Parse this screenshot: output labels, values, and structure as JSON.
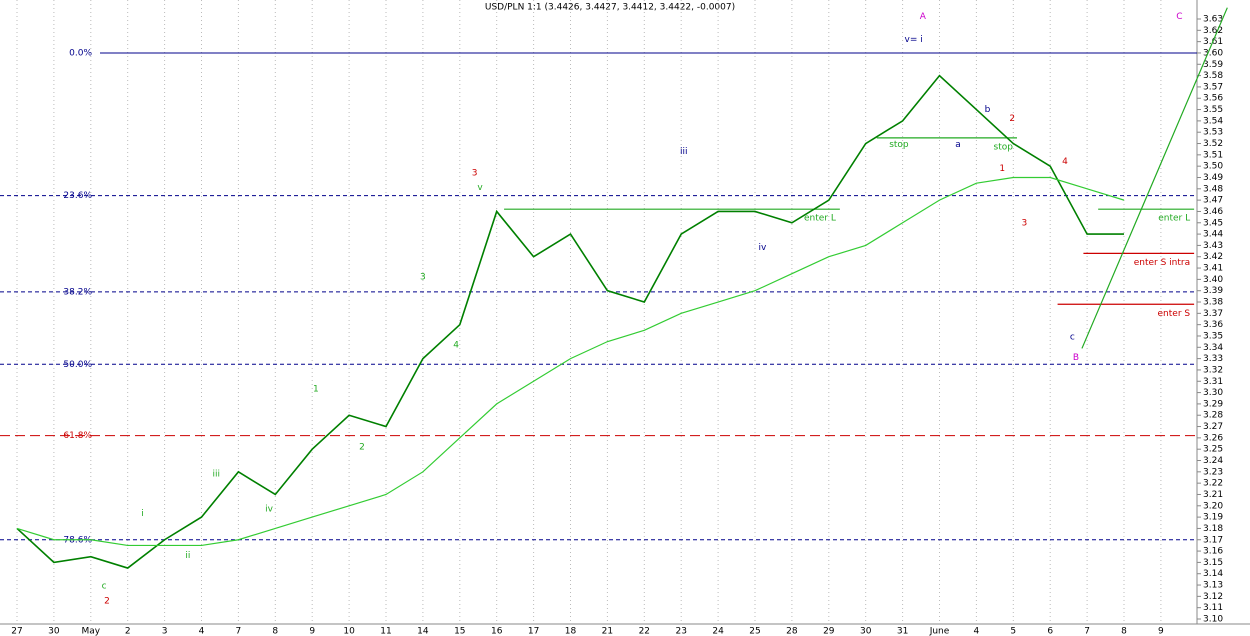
{
  "chart_data": {
    "type": "line",
    "title": "USD/PLN 1:1 (3.4426, 3.4427, 3.4412, 3.4422, -0.0007)",
    "categories": [
      "27",
      "30",
      "May",
      "2",
      "3",
      "4",
      "7",
      "8",
      "9",
      "10",
      "11",
      "14",
      "15",
      "16",
      "17",
      "18",
      "21",
      "22",
      "23",
      "24",
      "25",
      "28",
      "29",
      "30",
      "31",
      "June",
      "4",
      "5",
      "6",
      "7",
      "8",
      "9"
    ],
    "series": [
      {
        "color": "#008000",
        "values": [
          3.18,
          3.15,
          3.155,
          3.145,
          3.17,
          3.19,
          3.23,
          3.21,
          3.25,
          3.28,
          3.27,
          3.33,
          3.36,
          3.46,
          3.42,
          3.44,
          3.39,
          3.38,
          3.44,
          3.46,
          3.46,
          3.45,
          3.47,
          3.52,
          3.54,
          3.58,
          3.55,
          3.52,
          3.5,
          3.44,
          3.44,
          null
        ]
      },
      {
        "color": "#33cc33",
        "values": [
          3.18,
          3.17,
          3.17,
          3.165,
          3.165,
          3.165,
          3.17,
          3.18,
          3.19,
          3.2,
          3.21,
          3.23,
          3.26,
          3.29,
          3.31,
          3.33,
          3.345,
          3.355,
          3.37,
          3.38,
          3.39,
          3.405,
          3.42,
          3.43,
          3.45,
          3.47,
          3.485,
          3.49,
          3.49,
          3.48,
          3.47,
          null
        ]
      }
    ],
    "ylim": [
      3.1,
      3.63
    ],
    "yticks": [
      {
        "value": 3.1,
        "label": "3.10"
      },
      3.11,
      3.12,
      3.13,
      3.14,
      3.15,
      3.16,
      3.17,
      3.18,
      3.19,
      {
        "value": 3.2,
        "label": "3.20"
      },
      3.21,
      3.22,
      3.23,
      3.24,
      3.25,
      3.26,
      3.27,
      3.28,
      3.29,
      {
        "value": 3.3,
        "label": "3.30"
      },
      3.31,
      3.32,
      3.33,
      3.34,
      3.35,
      3.36,
      3.37,
      3.38,
      3.39,
      {
        "value": 3.4,
        "label": "3.40"
      },
      3.41,
      3.42,
      3.43,
      3.44,
      3.45,
      3.46,
      3.47,
      3.48,
      3.49,
      {
        "value": 3.5,
        "label": "3.50"
      },
      3.51,
      3.52,
      3.53,
      3.54,
      3.55,
      3.56,
      3.57,
      3.58,
      3.59,
      {
        "value": 3.6,
        "label": "3.60"
      },
      3.61,
      3.62,
      3.63
    ],
    "grid": true,
    "levels": [
      {
        "label": "0.0%",
        "value": 3.6,
        "color": "#00008b",
        "dashed": false
      },
      {
        "label": "23.6%",
        "value": 3.474,
        "color": "#00008b",
        "dashed": true
      },
      {
        "label": "38.2%",
        "value": 3.389,
        "color": "#00008b",
        "dashed": true
      },
      {
        "label": "50.0%",
        "value": 3.325,
        "color": "#00008b",
        "dashed": true
      },
      {
        "label": "61.8%",
        "value": 3.262,
        "color": "#cc0000",
        "dashed": true
      },
      {
        "label": "78.6%",
        "value": 3.17,
        "color": "#00008b",
        "dashed": true
      }
    ],
    "trade_lines": [
      {
        "label": "enter L",
        "value": 3.462,
        "x": [
          13.2,
          22.3
        ],
        "color": "#22aa22"
      },
      {
        "label": "enter L",
        "value": 3.462,
        "x": [
          29.3,
          31.9
        ],
        "color": "#22aa22"
      },
      {
        "label": "stop",
        "value": 3.525,
        "x": [
          23.3,
          27.1
        ],
        "color": "#22aa22"
      },
      {
        "label": "enter S intra",
        "value": 3.423,
        "x": [
          28.9,
          31.9
        ],
        "color": "#cc0000"
      },
      {
        "label": "enter S",
        "value": 3.378,
        "x": [
          28.2,
          31.9
        ],
        "color": "#cc0000"
      }
    ],
    "trend_lines": [
      {
        "x": [
          28.86,
          32.8
        ],
        "y": [
          3.339,
          3.64
        ],
        "color": "#22aa22"
      }
    ],
    "annotations": [
      {
        "text": "A",
        "x": 24.55,
        "y": 3.632,
        "color": "#cc00cc"
      },
      {
        "text": "C",
        "x": 31.5,
        "y": 3.632,
        "color": "#cc00cc"
      },
      {
        "text": "v= i",
        "x": 24.3,
        "y": 3.612,
        "color": "#00008b"
      },
      {
        "text": "b",
        "x": 26.3,
        "y": 3.55,
        "color": "#00008b"
      },
      {
        "text": "2",
        "x": 26.97,
        "y": 3.542,
        "color": "#cc0000"
      },
      {
        "text": "a",
        "x": 25.5,
        "y": 3.519,
        "color": "#00008b"
      },
      {
        "text": "stop",
        "x": 23.9,
        "y": 3.519,
        "color": "#22aa22"
      },
      {
        "text": "iii",
        "x": 18.07,
        "y": 3.513,
        "color": "#00008b"
      },
      {
        "text": "4",
        "x": 28.4,
        "y": 3.504,
        "color": "#cc0000"
      },
      {
        "text": "1",
        "x": 26.7,
        "y": 3.498,
        "color": "#cc0000"
      },
      {
        "text": "3",
        "x": 12.4,
        "y": 3.494,
        "color": "#cc0000"
      },
      {
        "text": "v",
        "x": 12.55,
        "y": 3.481,
        "color": "#22aa22"
      },
      {
        "text": "3",
        "x": 27.3,
        "y": 3.45,
        "color": "#cc0000"
      },
      {
        "text": "iv",
        "x": 20.2,
        "y": 3.428,
        "color": "#00008b"
      },
      {
        "text": "3",
        "x": 11.0,
        "y": 3.402,
        "color": "#22aa22"
      },
      {
        "text": "4",
        "x": 11.9,
        "y": 3.342,
        "color": "#22aa22"
      },
      {
        "text": "c",
        "x": 28.6,
        "y": 3.349,
        "color": "#00008b"
      },
      {
        "text": "B",
        "x": 28.7,
        "y": 3.331,
        "color": "#cc00cc"
      },
      {
        "text": "1",
        "x": 8.1,
        "y": 3.303,
        "color": "#22aa22"
      },
      {
        "text": "2",
        "x": 9.35,
        "y": 3.252,
        "color": "#22aa22"
      },
      {
        "text": "iii",
        "x": 5.4,
        "y": 3.228,
        "color": "#22aa22"
      },
      {
        "text": "iv",
        "x": 6.83,
        "y": 3.197,
        "color": "#22aa22"
      },
      {
        "text": "i",
        "x": 3.4,
        "y": 3.193,
        "color": "#22aa22"
      },
      {
        "text": "ii",
        "x": 4.63,
        "y": 3.156,
        "color": "#22aa22"
      },
      {
        "text": "c",
        "x": 2.36,
        "y": 3.129,
        "color": "#22aa22"
      },
      {
        "text": "2",
        "x": 2.44,
        "y": 3.116,
        "color": "#cc0000"
      }
    ]
  }
}
